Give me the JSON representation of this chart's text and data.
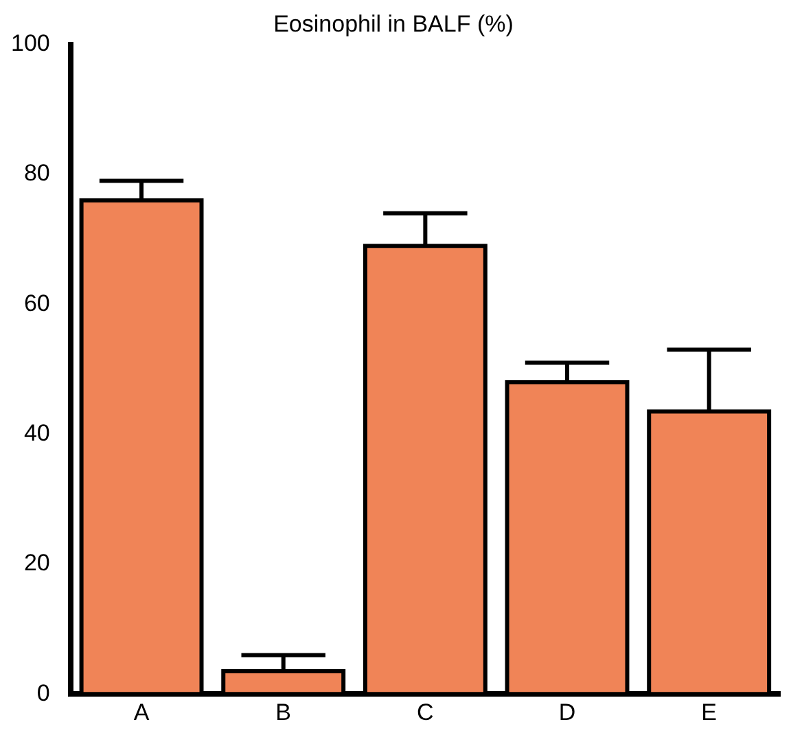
{
  "chart_data": {
    "type": "bar",
    "title": "Eosinophil in BALF (%)",
    "categories": [
      "A",
      "B",
      "C",
      "D",
      "E"
    ],
    "values": [
      76,
      3.5,
      69,
      48,
      43.5
    ],
    "errors": [
      [
        76,
        79
      ],
      [
        3.5,
        6
      ],
      [
        69,
        74
      ],
      [
        48,
        51
      ],
      [
        43.5,
        53
      ]
    ],
    "color": "#f08457",
    "ylim": [
      0,
      100
    ],
    "yticks": [
      0,
      20,
      40,
      60,
      80,
      100
    ],
    "grid": false,
    "legend": false
  }
}
